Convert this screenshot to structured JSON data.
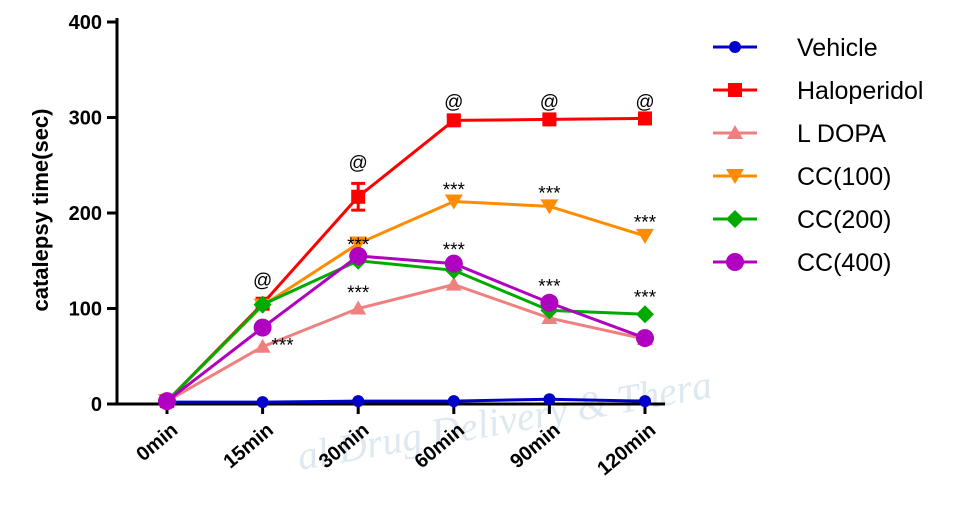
{
  "chart_data": {
    "type": "line",
    "ylabel": "catalepsy time(sec)",
    "xlabel": "",
    "ylim": [
      0,
      400
    ],
    "yticks": [
      "0",
      "100",
      "200",
      "300",
      "400"
    ],
    "categories": [
      "0min",
      "15min",
      "30min",
      "60min",
      "90min",
      "120min"
    ],
    "legend_position": "right",
    "watermark": "al Drug Delivery & Thera",
    "series": [
      {
        "name": "Vehicle",
        "color": "#0000cc",
        "marker": "circle",
        "values": [
          2,
          2,
          3,
          3,
          5,
          3
        ]
      },
      {
        "name": "Haloperidol",
        "color": "#ff0000",
        "marker": "square",
        "values": [
          3,
          105,
          217,
          297,
          298,
          299
        ],
        "errors": [
          0,
          3,
          14,
          4,
          3,
          3
        ]
      },
      {
        "name": "L DOPA",
        "color": "#f08080",
        "marker": "triangle-up",
        "values": [
          3,
          60,
          100,
          125,
          90,
          68
        ]
      },
      {
        "name": "CC(100)",
        "color": "#ff8c00",
        "marker": "triangle-down",
        "values": [
          3,
          103,
          168,
          212,
          207,
          176
        ]
      },
      {
        "name": "CC(200)",
        "color": "#00aa00",
        "marker": "diamond",
        "values": [
          3,
          104,
          150,
          140,
          98,
          94
        ]
      },
      {
        "name": "CC(400)",
        "color": "#b000c0",
        "marker": "circle-large",
        "values": [
          3,
          80,
          155,
          147,
          106,
          69
        ]
      }
    ],
    "annotations": [
      {
        "text": "@",
        "category": "15min",
        "value": 123
      },
      {
        "text": "@",
        "category": "30min",
        "value": 246
      },
      {
        "text": "@",
        "category": "60min",
        "value": 310
      },
      {
        "text": "@",
        "category": "90min",
        "value": 310
      },
      {
        "text": "@",
        "category": "120min",
        "value": 310
      },
      {
        "text": "***",
        "category": "15min",
        "value": 55
      },
      {
        "text": "***",
        "category": "30min",
        "value": 110
      },
      {
        "text": "***",
        "category": "30min",
        "value": 160
      },
      {
        "text": "***",
        "category": "60min",
        "value": 155
      },
      {
        "text": "***",
        "category": "60min",
        "value": 218
      },
      {
        "text": "***",
        "category": "90min",
        "value": 117
      },
      {
        "text": "***",
        "category": "90min",
        "value": 214
      },
      {
        "text": "***",
        "category": "120min",
        "value": 105
      },
      {
        "text": "***",
        "category": "120min",
        "value": 184
      }
    ]
  }
}
